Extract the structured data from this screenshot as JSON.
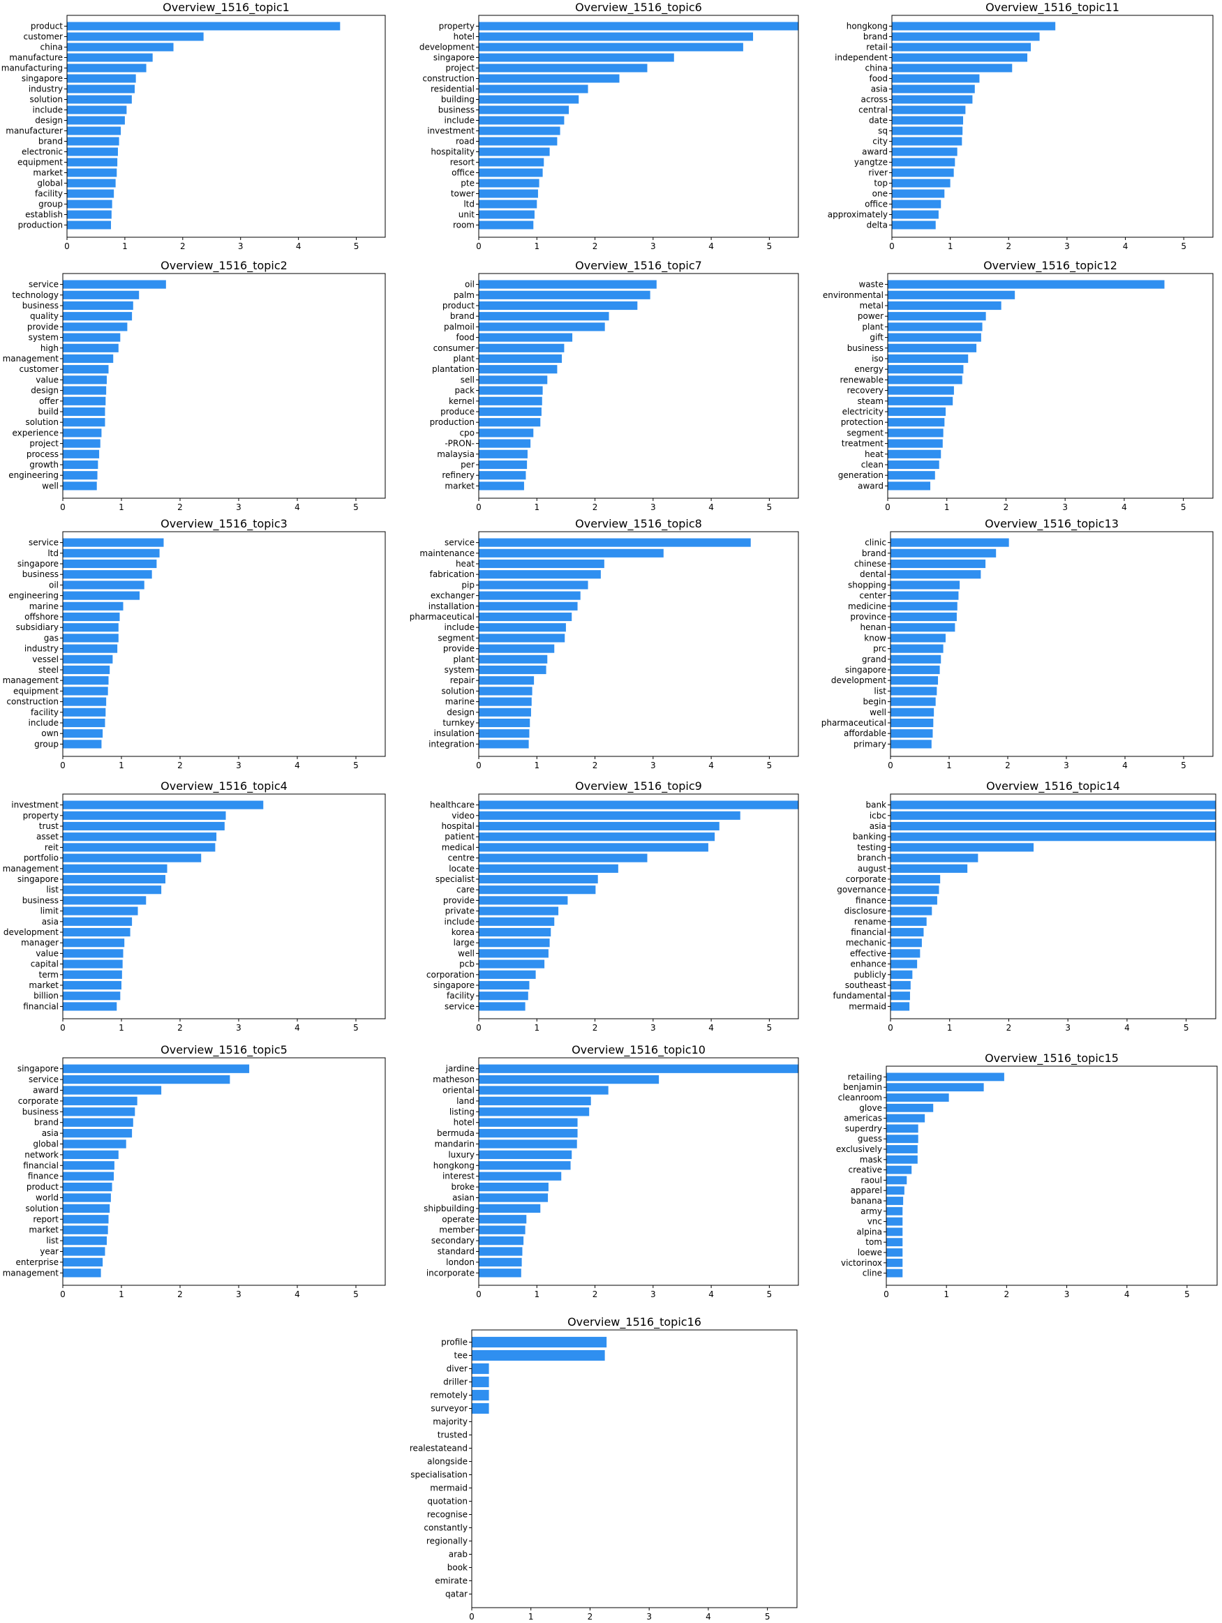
{
  "style": {
    "bar_color": "#2f8ff0",
    "axis_color": "#000000",
    "background": "#ffffff"
  },
  "chart_data": [
    {
      "type": "bar",
      "orientation": "horizontal",
      "title": "Overview_1516_topic1",
      "xlim": [
        0,
        5.5
      ],
      "xticks": [
        0,
        1,
        2,
        3,
        4,
        5
      ],
      "categories": [
        "product",
        "customer",
        "china",
        "manufacture",
        "manufacturing",
        "singapore",
        "industry",
        "solution",
        "include",
        "design",
        "manufacturer",
        "brand",
        "electronic",
        "equipment",
        "market",
        "global",
        "facility",
        "group",
        "establish",
        "production"
      ],
      "values": [
        4.72,
        2.36,
        1.84,
        1.48,
        1.37,
        1.19,
        1.17,
        1.12,
        1.03,
        1.0,
        0.93,
        0.9,
        0.88,
        0.87,
        0.86,
        0.84,
        0.81,
        0.78,
        0.77,
        0.76
      ]
    },
    {
      "type": "bar",
      "orientation": "horizontal",
      "title": "Overview_1516_topic2",
      "xlim": [
        0,
        5.5
      ],
      "xticks": [
        0,
        1,
        2,
        3,
        4,
        5
      ],
      "categories": [
        "service",
        "technology",
        "business",
        "quality",
        "provide",
        "system",
        "high",
        "management",
        "customer",
        "value",
        "design",
        "offer",
        "build",
        "solution",
        "experience",
        "project",
        "process",
        "growth",
        "engineering",
        "well"
      ],
      "values": [
        1.76,
        1.3,
        1.2,
        1.18,
        1.1,
        0.98,
        0.95,
        0.86,
        0.78,
        0.75,
        0.74,
        0.73,
        0.72,
        0.72,
        0.66,
        0.64,
        0.62,
        0.6,
        0.59,
        0.58
      ]
    },
    {
      "type": "bar",
      "orientation": "horizontal",
      "title": "Overview_1516_topic3",
      "xlim": [
        0,
        5.5
      ],
      "xticks": [
        0,
        1,
        2,
        3,
        4,
        5
      ],
      "categories": [
        "service",
        "ltd",
        "singapore",
        "business",
        "oil",
        "engineering",
        "marine",
        "offshore",
        "subsidiary",
        "gas",
        "industry",
        "vessel",
        "steel",
        "management",
        "equipment",
        "construction",
        "facility",
        "include",
        "own",
        "group"
      ],
      "values": [
        1.72,
        1.65,
        1.6,
        1.52,
        1.39,
        1.31,
        1.03,
        0.97,
        0.95,
        0.95,
        0.93,
        0.85,
        0.8,
        0.78,
        0.77,
        0.74,
        0.73,
        0.72,
        0.68,
        0.66
      ]
    },
    {
      "type": "bar",
      "orientation": "horizontal",
      "title": "Overview_1516_topic4",
      "xlim": [
        0,
        5.5
      ],
      "xticks": [
        0,
        1,
        2,
        3,
        4,
        5
      ],
      "categories": [
        "investment",
        "property",
        "trust",
        "asset",
        "reit",
        "portfolio",
        "management",
        "singapore",
        "list",
        "business",
        "limit",
        "asia",
        "development",
        "manager",
        "value",
        "capital",
        "term",
        "market",
        "billion",
        "financial"
      ],
      "values": [
        3.42,
        2.78,
        2.76,
        2.62,
        2.6,
        2.36,
        1.78,
        1.75,
        1.68,
        1.42,
        1.28,
        1.18,
        1.15,
        1.05,
        1.03,
        1.02,
        1.01,
        1.0,
        0.98,
        0.92
      ]
    },
    {
      "type": "bar",
      "orientation": "horizontal",
      "title": "Overview_1516_topic5",
      "xlim": [
        0,
        5.5
      ],
      "xticks": [
        0,
        1,
        2,
        3,
        4,
        5
      ],
      "categories": [
        "singapore",
        "service",
        "award",
        "corporate",
        "business",
        "brand",
        "asia",
        "global",
        "network",
        "financial",
        "finance",
        "product",
        "world",
        "solution",
        "report",
        "market",
        "list",
        "year",
        "enterprise",
        "management"
      ],
      "values": [
        3.18,
        2.85,
        1.68,
        1.27,
        1.23,
        1.2,
        1.18,
        1.08,
        0.95,
        0.88,
        0.87,
        0.84,
        0.82,
        0.8,
        0.78,
        0.77,
        0.75,
        0.72,
        0.68,
        0.65
      ]
    },
    {
      "type": "bar",
      "orientation": "horizontal",
      "title": "Overview_1516_topic6",
      "xlim": [
        0,
        5.5
      ],
      "xticks": [
        0,
        1,
        2,
        3,
        4,
        5
      ],
      "categories": [
        "property",
        "hotel",
        "development",
        "singapore",
        "project",
        "construction",
        "residential",
        "building",
        "business",
        "include",
        "investment",
        "road",
        "hospitality",
        "resort",
        "office",
        "pte",
        "tower",
        "ltd",
        "unit",
        "room"
      ],
      "values": [
        5.55,
        4.72,
        4.55,
        3.36,
        2.9,
        2.42,
        1.88,
        1.72,
        1.55,
        1.47,
        1.4,
        1.35,
        1.22,
        1.12,
        1.1,
        1.04,
        1.02,
        1.0,
        0.96,
        0.94
      ]
    },
    {
      "type": "bar",
      "orientation": "horizontal",
      "title": "Overview_1516_topic7",
      "xlim": [
        0,
        5.5
      ],
      "xticks": [
        0,
        1,
        2,
        3,
        4,
        5
      ],
      "categories": [
        "oil",
        "palm",
        "product",
        "brand",
        "palmoil",
        "food",
        "consumer",
        "plant",
        "plantation",
        "sell",
        "pack",
        "kernel",
        "produce",
        "production",
        "cpo",
        "-PRON-",
        "malaysia",
        "per",
        "refinery",
        "market"
      ],
      "values": [
        3.06,
        2.95,
        2.73,
        2.24,
        2.17,
        1.61,
        1.47,
        1.43,
        1.35,
        1.18,
        1.1,
        1.09,
        1.08,
        1.06,
        0.94,
        0.89,
        0.84,
        0.83,
        0.81,
        0.78
      ]
    },
    {
      "type": "bar",
      "orientation": "horizontal",
      "title": "Overview_1516_topic8",
      "xlim": [
        0,
        5.5
      ],
      "xticks": [
        0,
        1,
        2,
        3,
        4,
        5
      ],
      "categories": [
        "service",
        "maintenance",
        "heat",
        "fabrication",
        "pip",
        "exchanger",
        "installation",
        "pharmaceutical",
        "include",
        "segment",
        "provide",
        "plant",
        "system",
        "repair",
        "solution",
        "marine",
        "design",
        "turnkey",
        "insulation",
        "integration"
      ],
      "values": [
        4.68,
        3.18,
        2.16,
        2.1,
        1.88,
        1.75,
        1.7,
        1.6,
        1.5,
        1.48,
        1.3,
        1.18,
        1.16,
        0.95,
        0.92,
        0.91,
        0.9,
        0.88,
        0.87,
        0.86
      ]
    },
    {
      "type": "bar",
      "orientation": "horizontal",
      "title": "Overview_1516_topic9",
      "xlim": [
        0,
        5.5
      ],
      "xticks": [
        0,
        1,
        2,
        3,
        4,
        5
      ],
      "categories": [
        "healthcare",
        "video",
        "hospital",
        "patient",
        "medical",
        "centre",
        "locate",
        "specialist",
        "care",
        "provide",
        "private",
        "include",
        "korea",
        "large",
        "well",
        "pcb",
        "corporation",
        "singapore",
        "facility",
        "service"
      ],
      "values": [
        5.5,
        4.5,
        4.14,
        4.06,
        3.95,
        2.9,
        2.4,
        2.05,
        2.01,
        1.53,
        1.37,
        1.3,
        1.24,
        1.22,
        1.2,
        1.13,
        0.98,
        0.87,
        0.85,
        0.8
      ]
    },
    {
      "type": "bar",
      "orientation": "horizontal",
      "title": "Overview_1516_topic10",
      "xlim": [
        0,
        5.5
      ],
      "xticks": [
        0,
        1,
        2,
        3,
        4,
        5
      ],
      "categories": [
        "jardine",
        "matheson",
        "oriental",
        "land",
        "listing",
        "hotel",
        "bermuda",
        "mandarin",
        "luxury",
        "hongkong",
        "interest",
        "broke",
        "asian",
        "shipbuilding",
        "operate",
        "member",
        "secondary",
        "standard",
        "london",
        "incorporate"
      ],
      "values": [
        5.5,
        3.1,
        2.23,
        1.93,
        1.9,
        1.7,
        1.7,
        1.69,
        1.6,
        1.58,
        1.42,
        1.2,
        1.19,
        1.06,
        0.82,
        0.8,
        0.77,
        0.75,
        0.74,
        0.73
      ]
    },
    {
      "type": "bar",
      "orientation": "horizontal",
      "title": "Overview_1516_topic11",
      "xlim": [
        0,
        5.5
      ],
      "xticks": [
        0,
        1,
        2,
        3,
        4,
        5
      ],
      "categories": [
        "hongkong",
        "brand",
        "retail",
        "independent",
        "china",
        "food",
        "asia",
        "across",
        "central",
        "date",
        "sq",
        "city",
        "award",
        "yangtze",
        "river",
        "top",
        "one",
        "office",
        "approximately",
        "delta"
      ],
      "values": [
        2.8,
        2.53,
        2.38,
        2.32,
        2.06,
        1.5,
        1.42,
        1.38,
        1.26,
        1.22,
        1.21,
        1.2,
        1.12,
        1.08,
        1.06,
        1.0,
        0.9,
        0.84,
        0.8,
        0.75
      ]
    },
    {
      "type": "bar",
      "orientation": "horizontal",
      "title": "Overview_1516_topic12",
      "xlim": [
        0,
        5.5
      ],
      "xticks": [
        0,
        1,
        2,
        3,
        4,
        5
      ],
      "categories": [
        "waste",
        "environmental",
        "metal",
        "power",
        "plant",
        "gift",
        "business",
        "iso",
        "energy",
        "renewable",
        "recovery",
        "steam",
        "electricity",
        "protection",
        "segment",
        "treatment",
        "heat",
        "clean",
        "generation",
        "award"
      ],
      "values": [
        4.68,
        2.15,
        1.92,
        1.66,
        1.6,
        1.58,
        1.5,
        1.36,
        1.28,
        1.26,
        1.12,
        1.1,
        0.98,
        0.96,
        0.94,
        0.93,
        0.9,
        0.87,
        0.8,
        0.72
      ]
    },
    {
      "type": "bar",
      "orientation": "horizontal",
      "title": "Overview_1516_topic13",
      "xlim": [
        0,
        5.5
      ],
      "xticks": [
        0,
        1,
        2,
        3,
        4,
        5
      ],
      "categories": [
        "clinic",
        "brand",
        "chinese",
        "dental",
        "shopping",
        "center",
        "medicine",
        "province",
        "henan",
        "know",
        "prc",
        "grand",
        "singapore",
        "development",
        "list",
        "begin",
        "well",
        "pharmaceutical",
        "affordable",
        "primary"
      ],
      "values": [
        2.02,
        1.8,
        1.62,
        1.54,
        1.18,
        1.16,
        1.14,
        1.13,
        1.1,
        0.94,
        0.9,
        0.86,
        0.84,
        0.81,
        0.79,
        0.77,
        0.74,
        0.73,
        0.72,
        0.7
      ]
    },
    {
      "type": "bar",
      "orientation": "horizontal",
      "title": "Overview_1516_topic14",
      "xlim": [
        0,
        5.5
      ],
      "xticks": [
        0,
        1,
        2,
        3,
        4,
        5
      ],
      "categories": [
        "bank",
        "icbc",
        "asia",
        "banking",
        "testing",
        "branch",
        "august",
        "corporate",
        "governance",
        "finance",
        "disclosure",
        "rename",
        "financial",
        "mechanic",
        "effective",
        "enhance",
        "publicly",
        "southeast",
        "fundamental",
        "mermaid"
      ],
      "values": [
        5.5,
        5.5,
        5.5,
        5.5,
        2.42,
        1.48,
        1.3,
        0.84,
        0.82,
        0.79,
        0.7,
        0.61,
        0.56,
        0.53,
        0.5,
        0.45,
        0.37,
        0.34,
        0.33,
        0.32
      ]
    },
    {
      "type": "bar",
      "orientation": "horizontal",
      "title": "Overview_1516_topic15",
      "xlim": [
        0,
        5.5
      ],
      "xticks": [
        0,
        1,
        2,
        3,
        4,
        5
      ],
      "categories": [
        "retailing",
        "benjamin",
        "cleanroom",
        "glove",
        "americas",
        "superdry",
        "guess",
        "exclusively",
        "mask",
        "creative",
        "raoul",
        "apparel",
        "banana",
        "army",
        "vnc",
        "alpina",
        "tom",
        "loewe",
        "victorinox",
        "cline"
      ],
      "values": [
        1.96,
        1.62,
        1.04,
        0.78,
        0.64,
        0.53,
        0.53,
        0.52,
        0.52,
        0.42,
        0.34,
        0.3,
        0.28,
        0.27,
        0.27,
        0.27,
        0.27,
        0.27,
        0.27,
        0.27
      ]
    },
    {
      "type": "bar",
      "orientation": "horizontal",
      "title": "Overview_1516_topic16",
      "xlim": [
        0,
        5.5
      ],
      "xticks": [
        0,
        1,
        2,
        3,
        4,
        5
      ],
      "categories": [
        "profile",
        "tee",
        "diver",
        "driller",
        "remotely",
        "surveyor",
        "majority",
        "trusted",
        "realestateand",
        "alongside",
        "specialisation",
        "mermaid",
        "quotation",
        "recognise",
        "constantly",
        "regionally",
        "arab",
        "book",
        "emirate",
        "qatar"
      ],
      "values": [
        2.28,
        2.25,
        0.29,
        0.29,
        0.29,
        0.29,
        0,
        0,
        0,
        0,
        0,
        0,
        0,
        0,
        0,
        0,
        0,
        0,
        0,
        0
      ]
    }
  ]
}
